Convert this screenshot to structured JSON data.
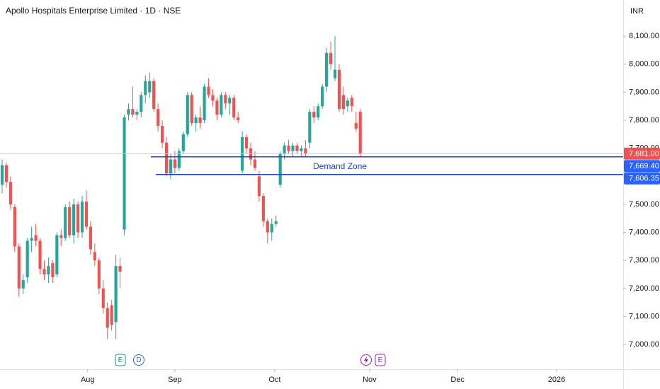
{
  "chart_data": {
    "type": "candlestick",
    "title": "Apollo Hospitals Enterprise Limited · 1D · NSE",
    "currency": "INR",
    "up_color": "#26a69a",
    "down_color": "#ef5350",
    "ohlc": [
      [
        7570,
        7660,
        7540,
        7640
      ],
      [
        7640,
        7650,
        7560,
        7580
      ],
      [
        7580,
        7600,
        7480,
        7500
      ],
      [
        7490,
        7500,
        7330,
        7350
      ],
      [
        7350,
        7360,
        7170,
        7200
      ],
      [
        7200,
        7250,
        7180,
        7230
      ],
      [
        7240,
        7380,
        7220,
        7370
      ],
      [
        7370,
        7420,
        7330,
        7380
      ],
      [
        7390,
        7430,
        7350,
        7370
      ],
      [
        7370,
        7380,
        7250,
        7270
      ],
      [
        7270,
        7300,
        7230,
        7250
      ],
      [
        7250,
        7310,
        7220,
        7280
      ],
      [
        7290,
        7300,
        7220,
        7240
      ],
      [
        7250,
        7400,
        7240,
        7390
      ],
      [
        7390,
        7410,
        7350,
        7380
      ],
      [
        7380,
        7500,
        7370,
        7490
      ],
      [
        7490,
        7510,
        7380,
        7390
      ],
      [
        7390,
        7520,
        7360,
        7500
      ],
      [
        7500,
        7510,
        7380,
        7400
      ],
      [
        7400,
        7530,
        7380,
        7510
      ],
      [
        7510,
        7550,
        7410,
        7420
      ],
      [
        7420,
        7440,
        7320,
        7340
      ],
      [
        7330,
        7360,
        7280,
        7300
      ],
      [
        7300,
        7310,
        7180,
        7200
      ],
      [
        7200,
        7230,
        7110,
        7130
      ],
      [
        7130,
        7150,
        7020,
        7060
      ],
      [
        7140,
        7160,
        7050,
        7070
      ],
      [
        7080,
        7320,
        7020,
        7280
      ],
      [
        7280,
        7310,
        7200,
        7260
      ],
      [
        7410,
        7820,
        7390,
        7810
      ],
      [
        7820,
        7860,
        7800,
        7840
      ],
      [
        7840,
        7920,
        7810,
        7820
      ],
      [
        7820,
        7840,
        7800,
        7830
      ],
      [
        7830,
        7900,
        7810,
        7890
      ],
      [
        7890,
        7960,
        7860,
        7940
      ],
      [
        7900,
        7970,
        7880,
        7940
      ],
      [
        7940,
        7950,
        7830,
        7840
      ],
      [
        7840,
        7860,
        7760,
        7780
      ],
      [
        7780,
        7800,
        7700,
        7720
      ],
      [
        7720,
        7740,
        7600,
        7610
      ],
      [
        7610,
        7680,
        7590,
        7660
      ],
      [
        7660,
        7690,
        7610,
        7630
      ],
      [
        7630,
        7700,
        7620,
        7690
      ],
      [
        7690,
        7760,
        7680,
        7750
      ],
      [
        7750,
        7900,
        7740,
        7890
      ],
      [
        7890,
        7900,
        7780,
        7790
      ],
      [
        7790,
        7820,
        7760,
        7810
      ],
      [
        7810,
        7850,
        7770,
        7790
      ],
      [
        7800,
        7930,
        7790,
        7920
      ],
      [
        7920,
        7950,
        7880,
        7890
      ],
      [
        7890,
        7910,
        7850,
        7870
      ],
      [
        7870,
        7880,
        7800,
        7820
      ],
      [
        7820,
        7900,
        7810,
        7890
      ],
      [
        7890,
        7900,
        7840,
        7860
      ],
      [
        7860,
        7890,
        7820,
        7880
      ],
      [
        7880,
        7890,
        7800,
        7810
      ],
      [
        7810,
        7830,
        7790,
        7800
      ],
      [
        7620,
        7760,
        7610,
        7740
      ],
      [
        7740,
        7750,
        7680,
        7700
      ],
      [
        7700,
        7720,
        7640,
        7660
      ],
      [
        7660,
        7690,
        7620,
        7630
      ],
      [
        7600,
        7620,
        7510,
        7530
      ],
      [
        7530,
        7540,
        7420,
        7440
      ],
      [
        7440,
        7450,
        7360,
        7400
      ],
      [
        7400,
        7450,
        7370,
        7430
      ],
      [
        7430,
        7460,
        7420,
        7440
      ],
      [
        7570,
        7690,
        7560,
        7680
      ],
      [
        7680,
        7720,
        7660,
        7710
      ],
      [
        7710,
        7730,
        7680,
        7690
      ],
      [
        7690,
        7720,
        7670,
        7710
      ],
      [
        7710,
        7720,
        7680,
        7690
      ],
      [
        7690,
        7710,
        7670,
        7700
      ],
      [
        7700,
        7730,
        7670,
        7680
      ],
      [
        7720,
        7840,
        7700,
        7830
      ],
      [
        7830,
        7850,
        7790,
        7810
      ],
      [
        7810,
        7860,
        7800,
        7850
      ],
      [
        7850,
        7930,
        7840,
        7920
      ],
      [
        7920,
        8060,
        7900,
        8040
      ],
      [
        8040,
        8080,
        7980,
        8000
      ],
      [
        7950,
        8100,
        7940,
        7980
      ],
      [
        7980,
        8000,
        7830,
        7840
      ],
      [
        7890,
        7920,
        7820,
        7840
      ],
      [
        7850,
        7880,
        7830,
        7870
      ],
      [
        7880,
        7890,
        7830,
        7850
      ],
      [
        7790,
        7830,
        7760,
        7770
      ],
      [
        7830,
        7840,
        7670,
        7681
      ]
    ],
    "xlim": [
      -0.5,
      147.4
    ],
    "xticks": [
      {
        "value": 20.3,
        "label": "Aug"
      },
      {
        "value": 41,
        "label": "Sep"
      },
      {
        "value": 64.7,
        "label": "Oct"
      },
      {
        "value": 87.2,
        "label": "Nov"
      },
      {
        "value": 108.1,
        "label": "Dec"
      },
      {
        "value": 131.6,
        "label": "2026"
      }
    ],
    "ylim": [
      6912,
      8229
    ],
    "yticks": [
      {
        "value": 7000,
        "label": "7,000.00"
      },
      {
        "value": 7100,
        "label": "7,100.00"
      },
      {
        "value": 7200,
        "label": "7,200.00"
      },
      {
        "value": 7300,
        "label": "7,300.00"
      },
      {
        "value": 7400,
        "label": "7,400.00"
      },
      {
        "value": 7500,
        "label": "7,500.00"
      },
      {
        "value": 7600,
        "label": "7,600.00"
      },
      {
        "value": 7700,
        "label": "7,700.00"
      },
      {
        "value": 7800,
        "label": "7,800.00"
      },
      {
        "value": 7900,
        "label": "7,900.00"
      },
      {
        "value": 8000,
        "label": "8,000.00"
      },
      {
        "value": 8100,
        "label": "8,100.00"
      }
    ],
    "last_price": {
      "value": 7681,
      "label": "7,681.00"
    },
    "levels": [
      {
        "value": 7669.4,
        "label": "7,669.40",
        "color": "#1848cc"
      },
      {
        "value": 7606.35,
        "label": "7,606.35",
        "color": "#1848cc"
      }
    ],
    "annotation": "Demand Zone",
    "events": [
      "E",
      "D",
      "E"
    ]
  }
}
